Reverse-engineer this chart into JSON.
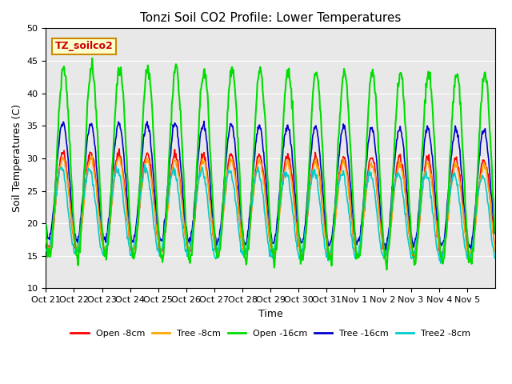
{
  "title": "Tonzi Soil CO2 Profile: Lower Temperatures",
  "xlabel": "Time",
  "ylabel": "Soil Temperatures (C)",
  "ylim": [
    10,
    50
  ],
  "yticks": [
    10,
    15,
    20,
    25,
    30,
    35,
    40,
    45,
    50
  ],
  "background_color": "#e8e8e8",
  "series": {
    "open_8cm": {
      "color": "#ff0000",
      "label": "Open -8cm",
      "lw": 1.2
    },
    "tree_8cm": {
      "color": "#ffa500",
      "label": "Tree -8cm",
      "lw": 1.2
    },
    "open_16cm": {
      "color": "#00dd00",
      "label": "Open -16cm",
      "lw": 1.5
    },
    "tree_16cm": {
      "color": "#0000cc",
      "label": "Tree -16cm",
      "lw": 1.2
    },
    "tree2_8cm": {
      "color": "#00cccc",
      "label": "Tree2 -8cm",
      "lw": 1.2
    }
  },
  "xtick_labels": [
    "Oct 21",
    "Oct 22",
    "Oct 23",
    "Oct 24",
    "Oct 25",
    "Oct 26",
    "Oct 27",
    "Oct 28",
    "Oct 29",
    "Oct 30",
    "Oct 31",
    "Nov 1",
    "Nov 2",
    "Nov 3",
    "Nov 4",
    "Nov 5"
  ],
  "legend_label": "TZ_soilco2",
  "legend_box_color": "#ffffcc",
  "legend_text_color": "#cc0000"
}
